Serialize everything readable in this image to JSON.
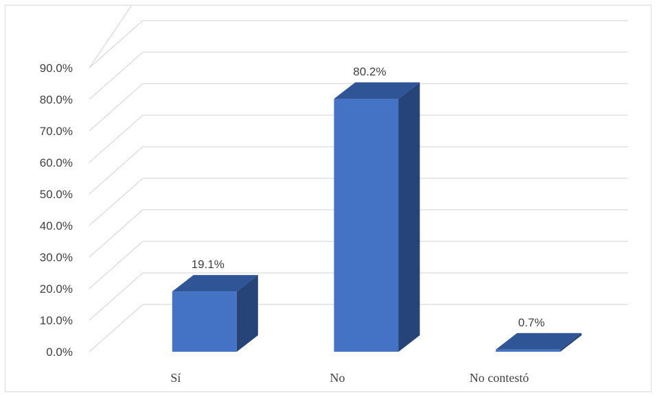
{
  "chart_data": {
    "type": "bar",
    "style": "3d-column",
    "categories": [
      "Sí",
      "No",
      "No contestó"
    ],
    "values": [
      19.1,
      80.2,
      0.7
    ],
    "data_labels": [
      "19.1%",
      "80.2%",
      "0.7%"
    ],
    "title": "",
    "xlabel": "",
    "ylabel": "",
    "ylim": [
      0,
      90
    ],
    "y_ticks": [
      0,
      10,
      20,
      30,
      40,
      50,
      60,
      70,
      80,
      90
    ],
    "y_tick_labels": [
      "0.0%",
      "10.0%",
      "20.0%",
      "30.0%",
      "40.0%",
      "50.0%",
      "60.0%",
      "70.0%",
      "80.0%",
      "90.0%"
    ],
    "grid": true,
    "legend": "none",
    "colors": {
      "front": "#4472c4",
      "top": "#2f5597",
      "side": "#264478",
      "grid": "#d9d9d9",
      "text": "#404040"
    }
  }
}
